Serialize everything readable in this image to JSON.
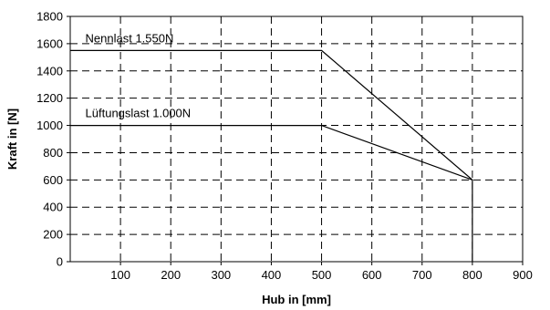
{
  "chart_data": {
    "type": "line",
    "xlabel": "Hub in [mm]",
    "ylabel": "Kraft in [N]",
    "xlim": [
      0,
      900
    ],
    "ylim": [
      0,
      1800
    ],
    "x_ticks": [
      "100",
      "200",
      "300",
      "400",
      "500",
      "600",
      "700",
      "800",
      "900"
    ],
    "y_ticks": [
      "0",
      "200",
      "400",
      "600",
      "800",
      "1000",
      "1200",
      "1400",
      "1600",
      "1800"
    ],
    "grid": true,
    "grid_style": "dashed",
    "series": [
      {
        "name": "Nennlast 1.550N",
        "x": [
          0,
          500,
          800,
          800
        ],
        "y": [
          1550,
          1550,
          600,
          0
        ],
        "color": "#000000"
      },
      {
        "name": "Lüftungslast 1.000N",
        "x": [
          0,
          500,
          800
        ],
        "y": [
          1000,
          1000,
          600
        ],
        "color": "#000000"
      }
    ],
    "annotations": [
      {
        "text": "Nennlast 1.550N",
        "x": 30,
        "y": 1610
      },
      {
        "text": "Lüftungslast 1.000N",
        "x": 30,
        "y": 1060
      }
    ]
  }
}
